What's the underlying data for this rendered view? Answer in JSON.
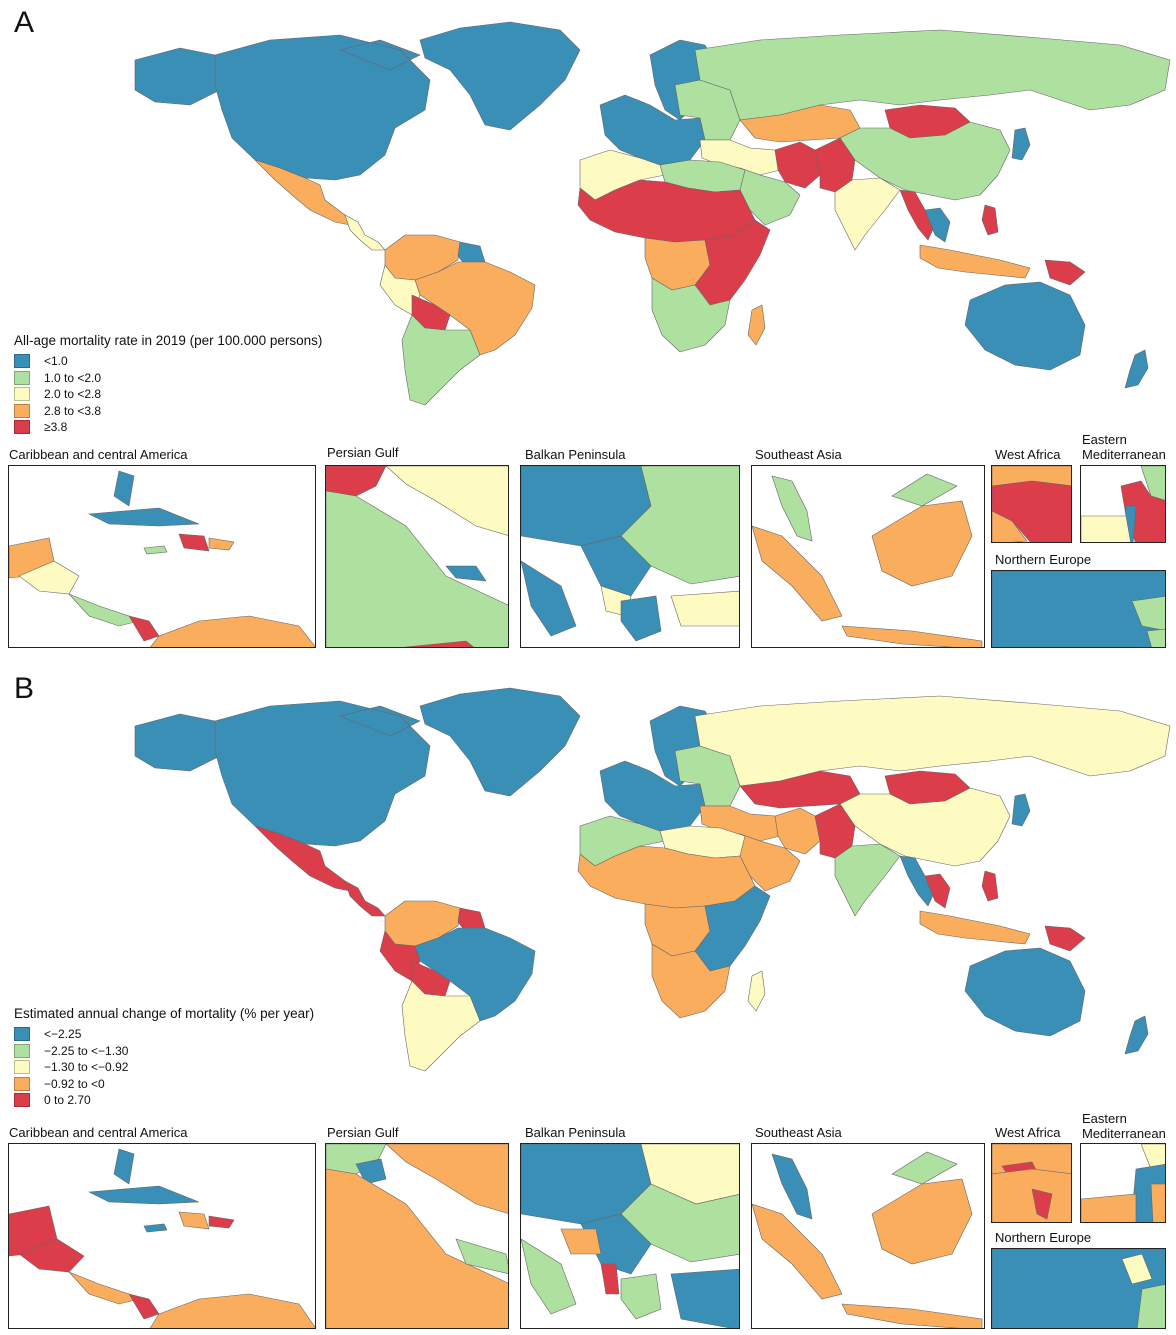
{
  "colors": {
    "blue": "#3a8fb7",
    "green": "#aee0a0",
    "yellow": "#fdfbc2",
    "orange": "#fbad5e",
    "red": "#dc3d4b",
    "water": "#ffffff",
    "border": "#666666"
  },
  "panelA": {
    "letter": "A",
    "legend_title": "All-age mortality rate in 2019 (per 100.000 persons)",
    "legend": [
      {
        "label": "<1.0",
        "color": "#3a8fb7"
      },
      {
        "label": "1.0 to <2.0",
        "color": "#aee0a0"
      },
      {
        "label": "2.0 to <2.8",
        "color": "#fdfbc2"
      },
      {
        "label": "2.8 to <3.8",
        "color": "#fbad5e"
      },
      {
        "label": "≥3.8",
        "color": "#dc3d4b"
      }
    ],
    "regions": {
      "north_america": "blue",
      "greenland": "blue",
      "alaska": "blue",
      "mexico": "orange",
      "central_america": "yellow",
      "colombia_venezuela": "orange",
      "brazil": "orange",
      "peru": "yellow",
      "bolivia": "red",
      "argentina_chile": "green",
      "guiana": "blue",
      "western_europe": "blue",
      "scandinavia": "blue",
      "eastern_europe": "green",
      "russia": "green",
      "kazakhstan": "orange",
      "mongolia": "red",
      "china": "green",
      "japan": "blue",
      "middle_east": "yellow",
      "iran": "red",
      "afghanistan_pakistan": "red",
      "arabia": "green",
      "india": "yellow",
      "myanmar_thailand": "red",
      "indochina": "blue",
      "philippines": "red",
      "indonesia": "orange",
      "png": "red",
      "australia": "blue",
      "new_zealand": "blue",
      "north_africa_west": "yellow",
      "egypt_libya": "green",
      "sahel": "red",
      "central_africa": "orange",
      "east_africa": "red",
      "southern_africa": "green",
      "madagascar": "orange"
    },
    "insets": {
      "caribbean": {
        "title": "Caribbean and central America"
      },
      "persian_gulf": {
        "title": "Persian Gulf"
      },
      "balkan": {
        "title": "Balkan Peninsula"
      },
      "southeast_asia": {
        "title": "Southeast Asia"
      },
      "west_africa": {
        "title": "West Africa"
      },
      "eastern_med": {
        "title": "Eastern\nMediterranean"
      },
      "northern_europe": {
        "title": "Northern Europe"
      }
    }
  },
  "panelB": {
    "letter": "B",
    "legend_title": "Estimated annual change of mortality (% per year)",
    "legend": [
      {
        "label": "<−2.25",
        "color": "#3a8fb7"
      },
      {
        "label": "−2.25 to <−1.30",
        "color": "#aee0a0"
      },
      {
        "label": "−1.30 to <−0.92",
        "color": "#fdfbc2"
      },
      {
        "label": "−0.92 to <0",
        "color": "#fbad5e"
      },
      {
        "label": "0 to 2.70",
        "color": "#dc3d4b"
      }
    ],
    "regions": {
      "north_america": "blue",
      "greenland": "blue",
      "alaska": "blue",
      "mexico": "red",
      "central_america": "red",
      "colombia_venezuela": "orange",
      "brazil": "blue",
      "peru": "red",
      "bolivia": "red",
      "argentina_chile": "yellow",
      "guiana": "red",
      "western_europe": "blue",
      "scandinavia": "blue",
      "eastern_europe": "green",
      "russia": "yellow",
      "kazakhstan": "red",
      "mongolia": "red",
      "china": "yellow",
      "japan": "blue",
      "middle_east": "orange",
      "iran": "orange",
      "afghanistan_pakistan": "red",
      "arabia": "orange",
      "india": "green",
      "myanmar_thailand": "blue",
      "indochina": "red",
      "philippines": "red",
      "indonesia": "orange",
      "png": "red",
      "australia": "blue",
      "new_zealand": "blue",
      "north_africa_west": "green",
      "egypt_libya": "yellow",
      "sahel": "orange",
      "central_africa": "orange",
      "east_africa": "blue",
      "southern_africa": "orange",
      "madagascar": "yellow"
    },
    "insets": {
      "caribbean": {
        "title": "Caribbean and central America"
      },
      "persian_gulf": {
        "title": "Persian Gulf"
      },
      "balkan": {
        "title": "Balkan Peninsula"
      },
      "southeast_asia": {
        "title": "Southeast Asia"
      },
      "west_africa": {
        "title": "West Africa"
      },
      "eastern_med": {
        "title": "Eastern\nMediterranean"
      },
      "northern_europe": {
        "title": "Northern Europe"
      }
    }
  }
}
